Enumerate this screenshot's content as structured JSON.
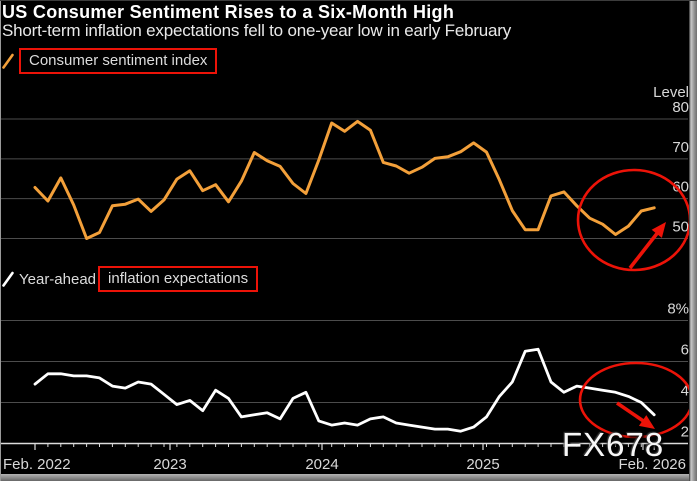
{
  "header": {
    "title": "US Consumer Sentiment Rises to a Six-Month High",
    "subtitle": "Short-term inflation expectations fell to one-year low in early February"
  },
  "watermark": "FX678",
  "colors": {
    "background": "#000000",
    "sentiment_line": "#f3a03a",
    "inflation_line": "#ffffff",
    "annotation_red": "#ec1308",
    "gridline": "#4c4c4c",
    "axis_line": "#dcdcdc",
    "label_text": "#d8d8d8",
    "title_text": "#ffffff"
  },
  "charts": {
    "top": {
      "legend": {
        "label": "Consumer sentiment index"
      },
      "axis_title": "Level",
      "ytick_labels": [
        "80",
        "70",
        "60",
        "50"
      ]
    },
    "bottom": {
      "legend": {
        "prefix": "Year-ahead",
        "boxed_label": "inflation expectations"
      },
      "ytick_labels": [
        "8%",
        "6",
        "4",
        "2"
      ]
    },
    "xtick_labels": [
      "Feb. 2022",
      "2023",
      "2024",
      "2025",
      "Feb. 2026"
    ]
  },
  "chart_data": [
    {
      "type": "line",
      "name": "Consumer sentiment index",
      "color": "#f3a03a",
      "x_start": "Feb. 2022",
      "x_end": "Feb. 2026",
      "frequency": "monthly",
      "ylabel": "Level",
      "yticks": [
        50,
        60,
        70,
        80
      ],
      "values": [
        62.8,
        59.4,
        65.2,
        58.4,
        50,
        51.5,
        58.2,
        58.6,
        59.9,
        56.8,
        59.7,
        64.9,
        67,
        62,
        63.5,
        59.2,
        64.4,
        71.6,
        69.5,
        68.1,
        63.8,
        61.3,
        69.7,
        79,
        76.9,
        79.4,
        77.2,
        69.1,
        68.2,
        66.4,
        67.9,
        70.1,
        70.5,
        71.8,
        74,
        71.7,
        64.7,
        57,
        52.2,
        52.2,
        60.7,
        61.7,
        58.2,
        55.1,
        53.6,
        51,
        53.1,
        56.9,
        57.7
      ],
      "annotation": "red ellipse with up-right arrow highlighting rebound to six-month high at end of series"
    },
    {
      "type": "line",
      "name": "Year-ahead inflation expectations",
      "color": "#ffffff",
      "x_start": "Feb. 2022",
      "x_end": "Feb. 2026",
      "frequency": "monthly",
      "unit": "%",
      "yticks": [
        2,
        4,
        6,
        8
      ],
      "values": [
        4.9,
        5.4,
        5.4,
        5.3,
        5.3,
        5.2,
        4.8,
        4.7,
        5,
        4.9,
        4.4,
        3.9,
        4.1,
        3.6,
        4.6,
        4.2,
        3.3,
        3.4,
        3.5,
        3.2,
        4.2,
        4.5,
        3.1,
        2.9,
        3,
        2.9,
        3.2,
        3.3,
        3,
        2.9,
        2.8,
        2.7,
        2.7,
        2.6,
        2.8,
        3.3,
        4.3,
        5,
        6.5,
        6.6,
        5,
        4.5,
        4.8,
        4.7,
        4.6,
        4.5,
        4.3,
        4,
        3.4
      ],
      "annotation": "red ellipse with down-right arrow highlighting fall to one-year low at end of series"
    }
  ]
}
